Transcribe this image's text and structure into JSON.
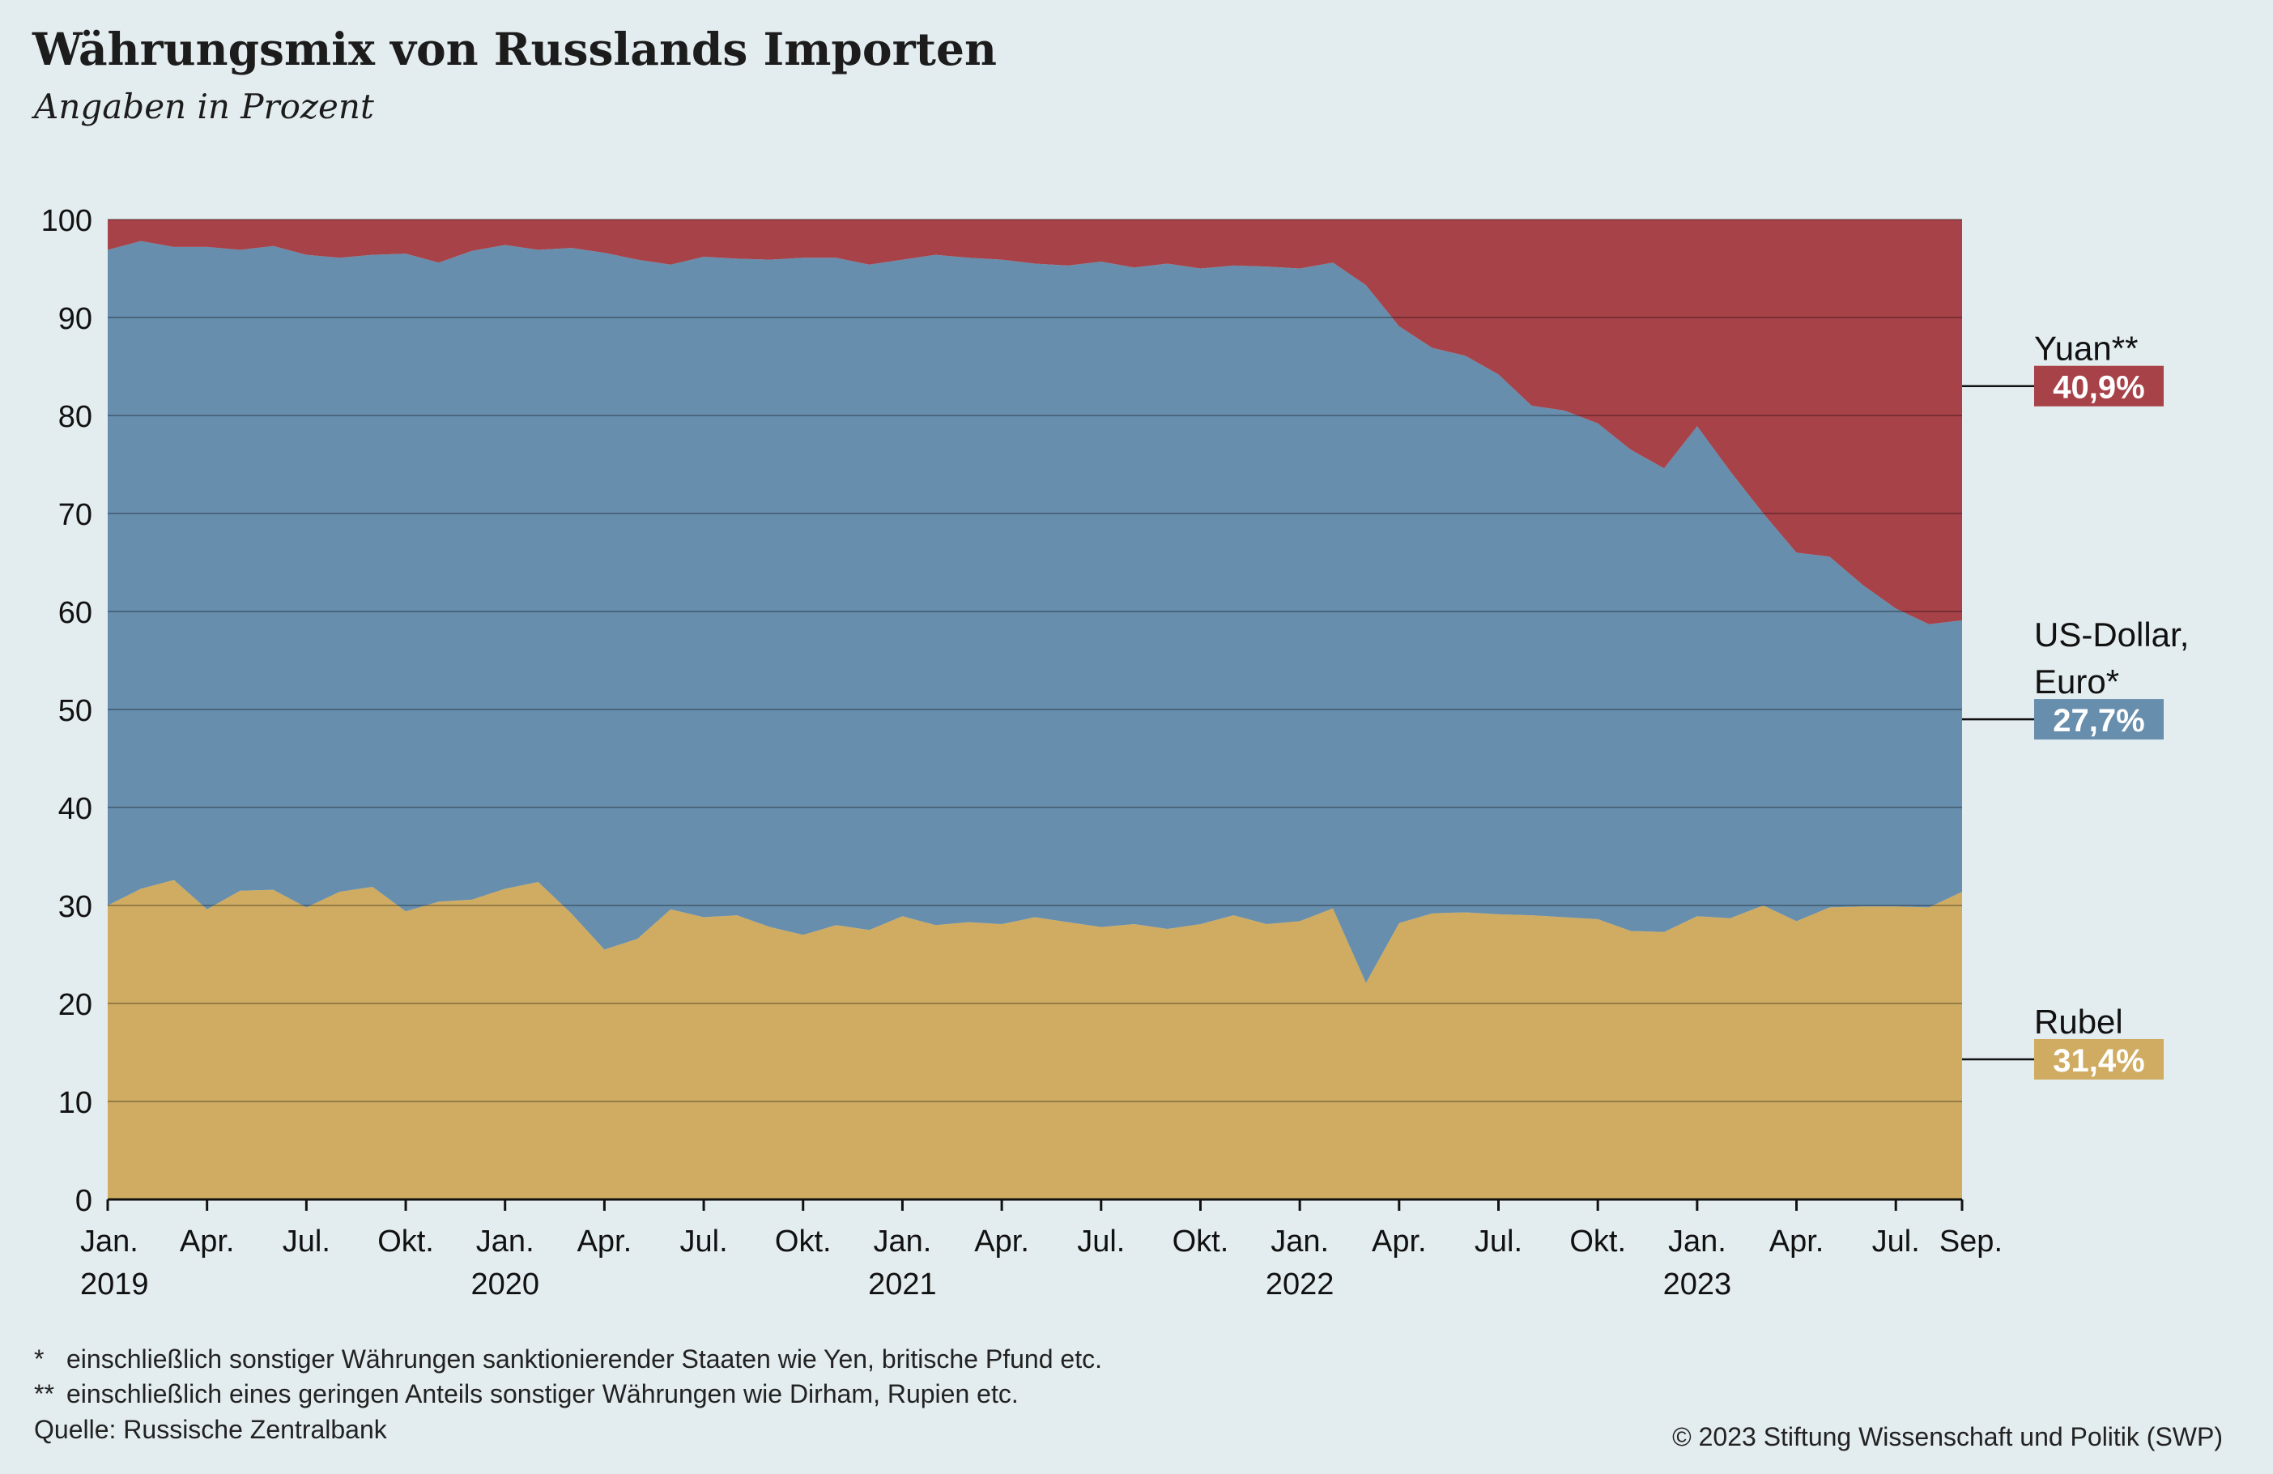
{
  "header": {
    "title": "Währungsmix von Russlands Importen",
    "subtitle": "Angaben in Prozent"
  },
  "chart_data": {
    "type": "area",
    "stacked": true,
    "ylim": [
      0,
      100
    ],
    "yticks": [
      "0",
      "10",
      "20",
      "30",
      "40",
      "50",
      "60",
      "70",
      "80",
      "90",
      "100"
    ],
    "xlim": [
      "2019-01",
      "2023-09"
    ],
    "x_labels": [
      {
        "month": "Jan.",
        "year": "2019"
      },
      {
        "month": "Apr.",
        "year": ""
      },
      {
        "month": "Jul.",
        "year": ""
      },
      {
        "month": "Okt.",
        "year": ""
      },
      {
        "month": "Jan.",
        "year": "2020"
      },
      {
        "month": "Apr.",
        "year": ""
      },
      {
        "month": "Jul.",
        "year": ""
      },
      {
        "month": "Okt.",
        "year": ""
      },
      {
        "month": "Jan.",
        "year": "2021"
      },
      {
        "month": "Apr.",
        "year": ""
      },
      {
        "month": "Jul.",
        "year": ""
      },
      {
        "month": "Okt.",
        "year": ""
      },
      {
        "month": "Jan.",
        "year": "2022"
      },
      {
        "month": "Apr.",
        "year": ""
      },
      {
        "month": "Jul.",
        "year": ""
      },
      {
        "month": "Okt.",
        "year": ""
      },
      {
        "month": "Jan.",
        "year": "2023"
      },
      {
        "month": "Apr.",
        "year": ""
      },
      {
        "month": "Jul.",
        "year": ""
      },
      {
        "month": "Sep.",
        "year": ""
      }
    ],
    "x": [
      "2019-01",
      "2019-02",
      "2019-03",
      "2019-04",
      "2019-05",
      "2019-06",
      "2019-07",
      "2019-08",
      "2019-09",
      "2019-10",
      "2019-11",
      "2019-12",
      "2020-01",
      "2020-02",
      "2020-03",
      "2020-04",
      "2020-05",
      "2020-06",
      "2020-07",
      "2020-08",
      "2020-09",
      "2020-10",
      "2020-11",
      "2020-12",
      "2021-01",
      "2021-02",
      "2021-03",
      "2021-04",
      "2021-05",
      "2021-06",
      "2021-07",
      "2021-08",
      "2021-09",
      "2021-10",
      "2021-11",
      "2021-12",
      "2022-01",
      "2022-02",
      "2022-03",
      "2022-04",
      "2022-05",
      "2022-06",
      "2022-07",
      "2022-08",
      "2022-09",
      "2022-10",
      "2022-11",
      "2022-12",
      "2023-01",
      "2023-02",
      "2023-03",
      "2023-04",
      "2023-05",
      "2023-06",
      "2023-07",
      "2023-08",
      "2023-09"
    ],
    "series": [
      {
        "name": "Rubel",
        "color": "#cfac62",
        "values": [
          30.0,
          31.7,
          32.6,
          29.6,
          31.5,
          31.6,
          29.8,
          31.4,
          31.9,
          29.4,
          30.4,
          30.6,
          31.7,
          32.4,
          29.2,
          25.5,
          26.6,
          29.6,
          28.8,
          29.0,
          27.8,
          27.0,
          28.0,
          27.5,
          28.9,
          28.0,
          28.3,
          28.1,
          28.8,
          28.3,
          27.8,
          28.1,
          27.6,
          28.1,
          29.0,
          28.1,
          28.4,
          29.7,
          22.1,
          28.2,
          29.2,
          29.3,
          29.1,
          29.0,
          28.8,
          28.6,
          27.4,
          27.3,
          28.9,
          28.7,
          30.0,
          28.4,
          29.8,
          29.9,
          29.9,
          29.8,
          31.4
        ]
      },
      {
        "name": "US-Dollar, Euro*",
        "color": "#678ead",
        "values": [
          66.9,
          66.1,
          64.6,
          67.6,
          65.4,
          65.7,
          66.6,
          64.7,
          64.5,
          67.1,
          65.2,
          66.2,
          65.7,
          64.5,
          67.9,
          71.1,
          69.3,
          65.8,
          67.4,
          67.0,
          68.1,
          69.1,
          68.1,
          67.9,
          67.0,
          68.4,
          67.8,
          67.8,
          66.7,
          67.0,
          67.9,
          67.0,
          67.9,
          66.9,
          66.3,
          67.1,
          66.6,
          65.9,
          71.2,
          60.9,
          57.7,
          56.8,
          55.1,
          52.0,
          51.7,
          50.6,
          49.1,
          47.3,
          50.0,
          45.6,
          40.0,
          37.6,
          35.8,
          32.8,
          30.4,
          28.9,
          27.7
        ]
      },
      {
        "name": "Yuan**",
        "color": "#a74249",
        "values": [
          3.1,
          2.2,
          2.8,
          2.8,
          3.1,
          2.7,
          3.6,
          3.9,
          3.6,
          3.5,
          4.4,
          3.2,
          2.6,
          3.1,
          2.9,
          3.4,
          4.1,
          4.6,
          3.8,
          4.0,
          4.1,
          3.9,
          3.9,
          4.6,
          4.1,
          3.6,
          3.9,
          4.1,
          4.5,
          4.7,
          4.3,
          4.9,
          4.5,
          5.0,
          4.7,
          4.8,
          5.0,
          4.4,
          6.7,
          10.9,
          13.1,
          13.9,
          15.8,
          19.0,
          19.5,
          20.8,
          23.5,
          25.4,
          21.1,
          25.7,
          30.0,
          34.0,
          34.4,
          37.3,
          39.7,
          41.3,
          40.9
        ]
      }
    ],
    "end_labels": [
      {
        "label": "Yuan**",
        "lines": [
          "Yuan**"
        ],
        "value": "40,9%",
        "color": "#a74249",
        "at": 83
      },
      {
        "label": "US-Dollar, Euro*",
        "lines": [
          "US-Dollar,",
          "Euro*"
        ],
        "value": "27,7%",
        "color": "#678ead",
        "at": 49
      },
      {
        "label": "Rubel",
        "lines": [
          "Rubel"
        ],
        "value": "31,4%",
        "color": "#cfac62",
        "at": 14.3
      }
    ],
    "grid": true
  },
  "footnotes": [
    {
      "mark": "*",
      "text": "einschließlich sonstiger Währungen sanktionierender Staaten wie Yen, britische Pfund etc."
    },
    {
      "mark": "**",
      "text": "einschließlich eines geringen Anteils sonstiger Währungen wie Dirham, Rupien etc."
    }
  ],
  "source": "Quelle: Russische Zentralbank",
  "copyright": "© 2023 Stiftung Wissenschaft und Politik (SWP)"
}
